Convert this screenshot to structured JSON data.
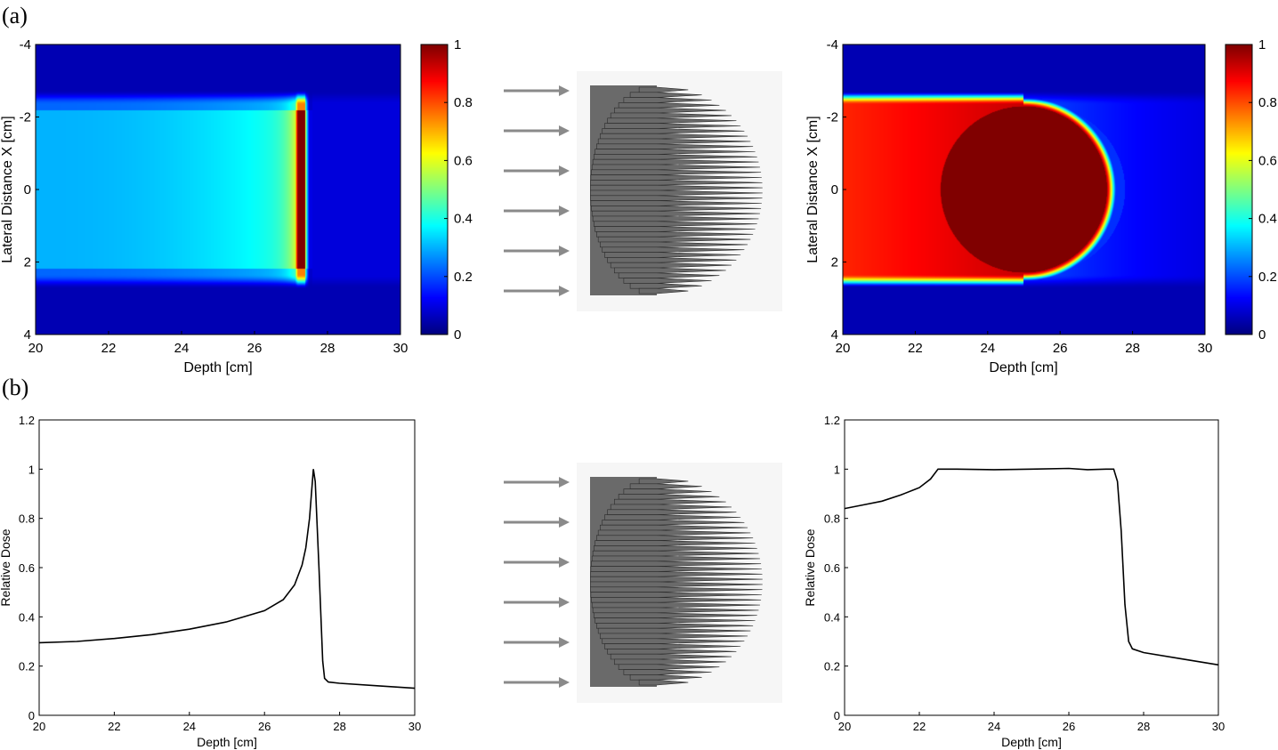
{
  "panel_labels": {
    "a": "(a)",
    "b": "(b)"
  },
  "colors": {
    "arrow": "#8a8a8a",
    "absorber_body": "#6a6a6a",
    "absorber_bg": "#f6f6f6",
    "dose_line": "#000000",
    "colormap": "jet"
  },
  "chart_data": [
    {
      "id": "heatmap-left",
      "type": "heatmap",
      "xlabel": "Depth [cm]",
      "ylabel": "Lateral Distance X [cm]",
      "xlim": [
        20,
        30
      ],
      "ylim": [
        -4,
        4
      ],
      "y_reversed": true,
      "xticks": [
        "20",
        "22",
        "24",
        "26",
        "28",
        "30"
      ],
      "yticks": [
        "-4",
        "-2",
        "0",
        "2",
        "4"
      ],
      "field": {
        "lateral_halfwidth_cm": 2.5,
        "entrance_dose": 0.3,
        "peak_depth_cm": 27.3,
        "peak_dose": 1.0,
        "distal_dose": 0.1,
        "background_dose": 0.05
      },
      "colorbar": {
        "range": [
          0,
          1
        ],
        "ticks": [
          "0",
          "0.2",
          "0.4",
          "0.6",
          "0.8",
          "1"
        ]
      }
    },
    {
      "id": "heatmap-right",
      "type": "heatmap",
      "xlabel": "Depth [cm]",
      "ylabel": "Lateral Distance X [cm]",
      "xlim": [
        20,
        30
      ],
      "ylim": [
        -4,
        4
      ],
      "y_reversed": true,
      "xticks": [
        "20",
        "22",
        "24",
        "26",
        "28",
        "30"
      ],
      "yticks": [
        "-4",
        "-2",
        "0",
        "2",
        "4"
      ],
      "field": {
        "lateral_halfwidth_cm": 2.5,
        "entrance_dose": 0.84,
        "sobp_center_depth_cm": 25.0,
        "sobp_radius_cm": 2.3,
        "plateau_dose": 1.0,
        "distal_dose": 0.2,
        "background_dose": 0.05
      },
      "colorbar": {
        "range": [
          0,
          1
        ],
        "ticks": [
          "0",
          "0.2",
          "0.4",
          "0.6",
          "0.8",
          "1"
        ]
      }
    },
    {
      "id": "dose-left",
      "type": "line",
      "xlabel": "Depth [cm]",
      "ylabel": "Relative Dose",
      "xlim": [
        20,
        30
      ],
      "ylim": [
        0,
        1.2
      ],
      "xticks": [
        "20",
        "22",
        "24",
        "26",
        "28",
        "30"
      ],
      "yticks": [
        "0",
        "0.2",
        "0.4",
        "0.6",
        "0.8",
        "1",
        "1.2"
      ],
      "x": [
        20,
        21,
        22,
        23,
        24,
        25,
        26,
        26.5,
        26.8,
        27.0,
        27.1,
        27.2,
        27.3,
        27.35,
        27.45,
        27.55,
        27.6,
        27.7,
        28,
        29,
        30
      ],
      "y": [
        0.295,
        0.3,
        0.312,
        0.328,
        0.35,
        0.38,
        0.425,
        0.47,
        0.53,
        0.61,
        0.68,
        0.8,
        1.0,
        0.95,
        0.6,
        0.22,
        0.15,
        0.135,
        0.13,
        0.12,
        0.11
      ]
    },
    {
      "id": "dose-right",
      "type": "line",
      "xlabel": "Depth [cm]",
      "ylabel": "Relative Dose",
      "xlim": [
        20,
        30
      ],
      "ylim": [
        0,
        1.2
      ],
      "xticks": [
        "20",
        "22",
        "24",
        "26",
        "28",
        "30"
      ],
      "yticks": [
        "0",
        "0.2",
        "0.4",
        "0.6",
        "0.8",
        "1",
        "1.2"
      ],
      "x": [
        20,
        20.5,
        21,
        21.5,
        22,
        22.3,
        22.5,
        23,
        24,
        25,
        26,
        26.5,
        27,
        27.2,
        27.3,
        27.4,
        27.5,
        27.6,
        27.7,
        28,
        29,
        30
      ],
      "y": [
        0.84,
        0.855,
        0.87,
        0.895,
        0.925,
        0.96,
        1.0,
        1.0,
        0.998,
        1.0,
        1.003,
        0.998,
        1.0,
        1.0,
        0.95,
        0.75,
        0.45,
        0.3,
        0.27,
        0.255,
        0.23,
        0.205
      ]
    }
  ]
}
